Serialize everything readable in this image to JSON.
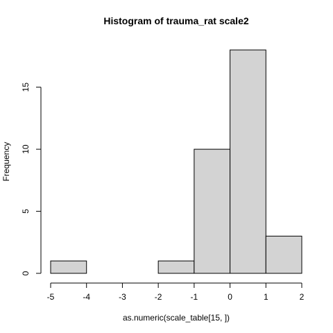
{
  "chart_data": {
    "type": "bar",
    "title": "Histogram of  trauma_rat scale2",
    "xlabel": "as.numeric(scale_table[15, ])",
    "ylabel": "Frequency",
    "bins": [
      {
        "from": -5,
        "to": -4,
        "count": 1
      },
      {
        "from": -4,
        "to": -3,
        "count": 0
      },
      {
        "from": -3,
        "to": -2,
        "count": 0
      },
      {
        "from": -2,
        "to": -1,
        "count": 1
      },
      {
        "from": -1,
        "to": 0,
        "count": 10
      },
      {
        "from": 0,
        "to": 1,
        "count": 18
      },
      {
        "from": 1,
        "to": 2,
        "count": 3
      }
    ],
    "xlim": [
      -5,
      2
    ],
    "ylim": [
      0,
      18
    ],
    "x_ticks": [
      -5,
      -4,
      -3,
      -2,
      -1,
      0,
      1,
      2
    ],
    "y_ticks": [
      0,
      5,
      10,
      15
    ],
    "grid": false,
    "bar_fill": "#d3d3d3",
    "bar_stroke": "#000000"
  }
}
